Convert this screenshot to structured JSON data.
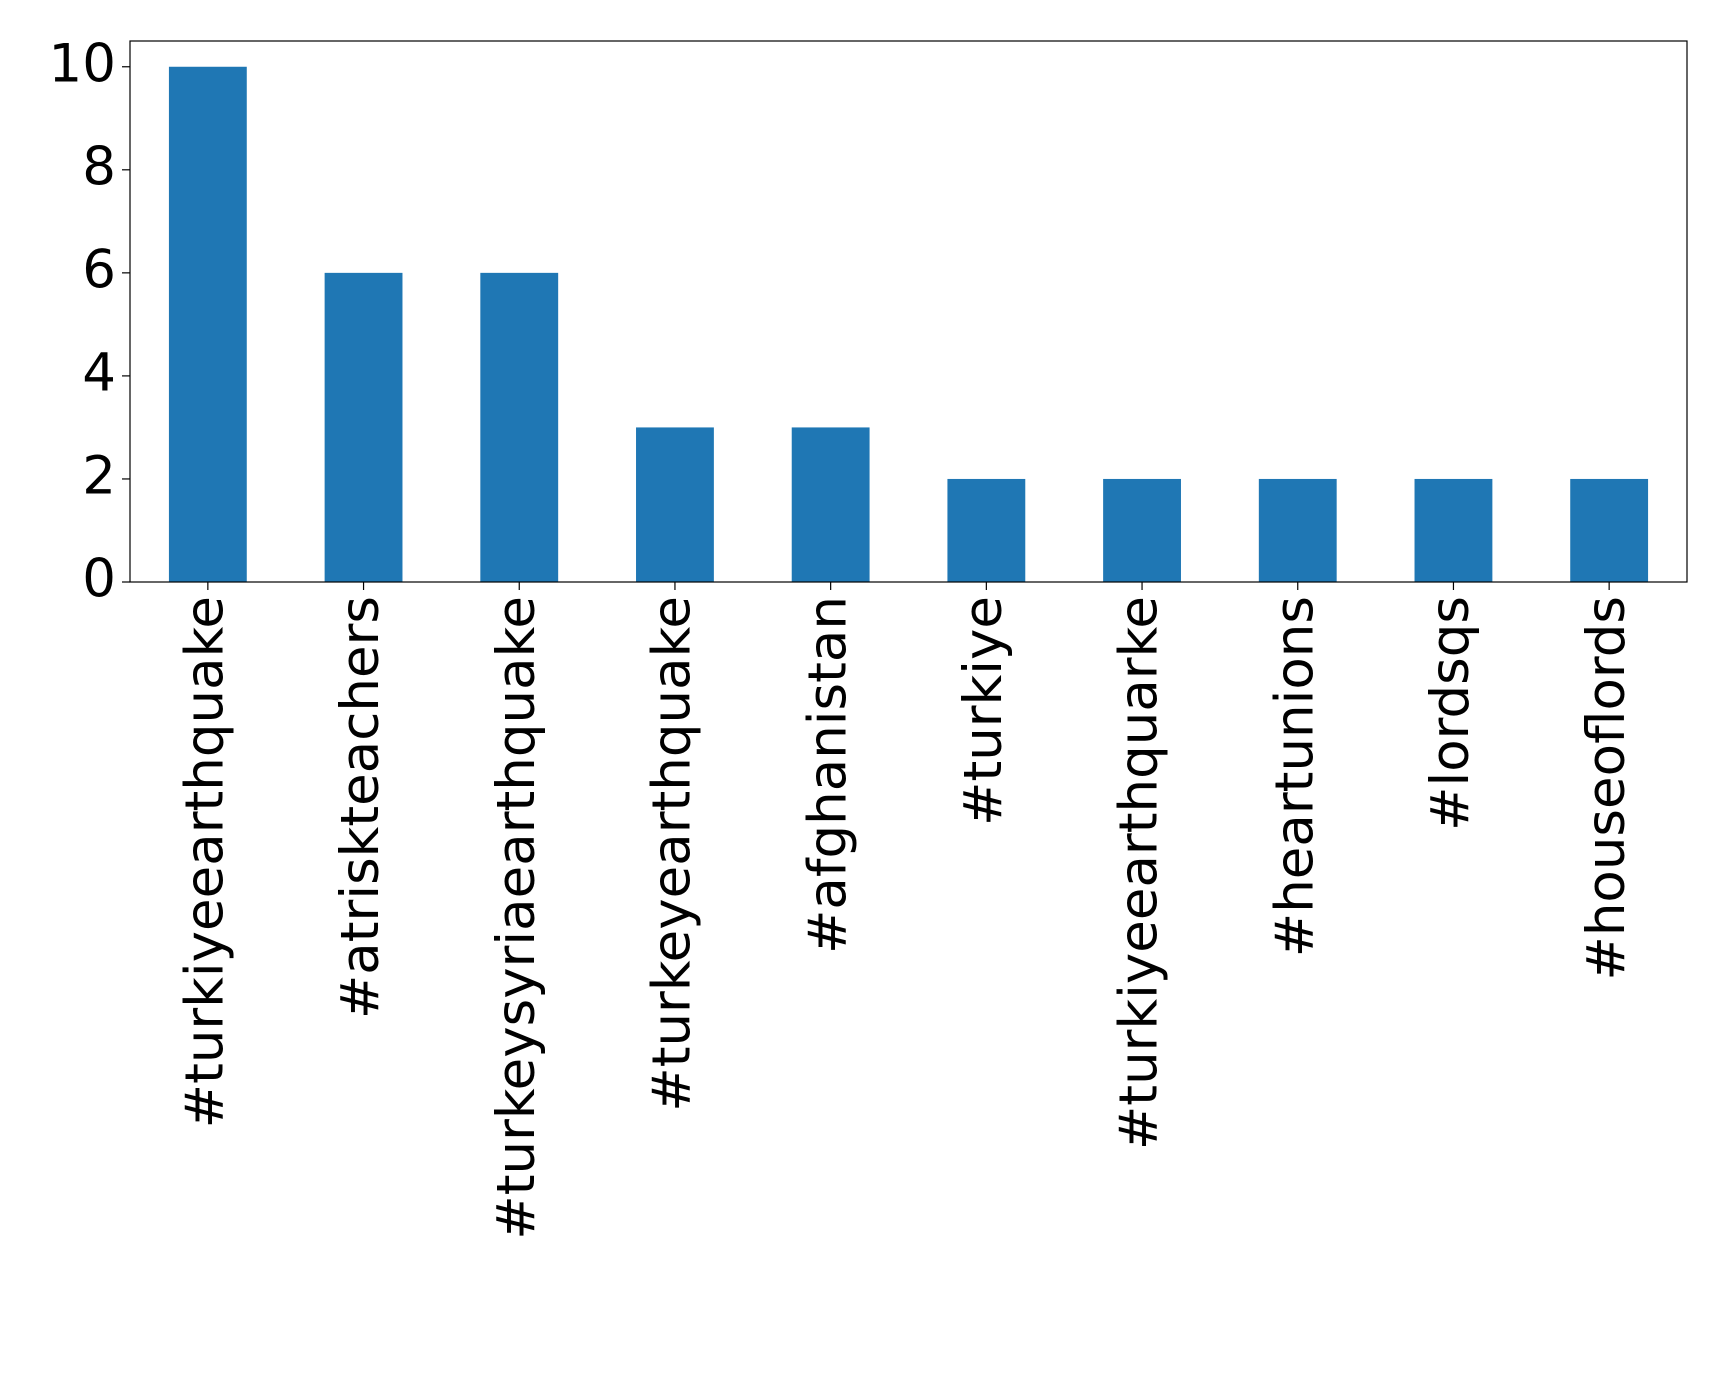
{
  "chart_data": {
    "type": "bar",
    "categories": [
      "#turkiyeearthquake",
      "#atriskteachers",
      "#turkeysyriaearthquake",
      "#turkeyearthquake",
      "#afghanistan",
      "#turkiye",
      "#turkiyeearthquarke",
      "#heartunions",
      "#lordsqs",
      "#houseoflords"
    ],
    "values": [
      10,
      6,
      6,
      3,
      3,
      2,
      2,
      2,
      2,
      2
    ],
    "color": "#1f77b4",
    "ylim": [
      0,
      10.5
    ],
    "yticks": [
      0,
      2,
      4,
      6,
      8,
      10
    ],
    "grid": false
  }
}
